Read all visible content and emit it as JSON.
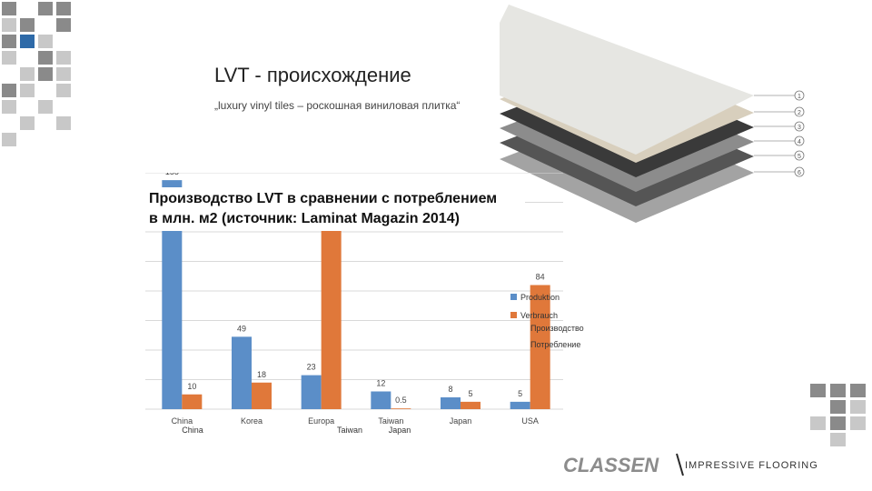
{
  "slide": {
    "title": "LVT - происхождение",
    "subtitle": "„luxury vinyl tiles – роскошная виниловая плитка“",
    "chart_heading_line1": "Производство LVT в сравнении с потреблением",
    "chart_heading_line2": "в млн. м2 (источник: Laminat Magazin 2014)",
    "logo_text": "CLASSEN",
    "tagline": "IMPRESSIVE FLOORING"
  },
  "layer_callouts": [
    "1",
    "2",
    "3",
    "4",
    "5",
    "6"
  ],
  "colors": {
    "production": "#5b8ec8",
    "consumption": "#e0783a",
    "grid": "#d9d9d9",
    "tile_dark": "#8a8a8a",
    "tile_light": "#c8c8c8",
    "tile_blue": "#2e6aa8"
  },
  "chart_data": {
    "type": "bar",
    "categories": [
      "China",
      "Korea",
      "Europa",
      "Taiwan",
      "Japan",
      "USA"
    ],
    "extra_category_labels": [
      "China",
      "Taiwan",
      "Japan"
    ],
    "series": [
      {
        "name": "Production",
        "values": [
          155,
          49,
          23,
          12,
          8,
          5
        ]
      },
      {
        "name": "Consumption",
        "values": [
          10,
          18,
          150,
          0.5,
          5,
          84
        ]
      }
    ],
    "legend_entries": [
      "Produktion",
      "Verbrauch",
      "Производство",
      "Потребление"
    ],
    "value_labels": {
      "production": [
        "155",
        "49",
        "23",
        "12",
        "8",
        "5"
      ],
      "consumption": [
        "10",
        "18",
        "",
        "0.5",
        "5",
        "84"
      ]
    },
    "ylim": [
      0,
      160
    ],
    "grid": true,
    "legend_position": "right"
  }
}
